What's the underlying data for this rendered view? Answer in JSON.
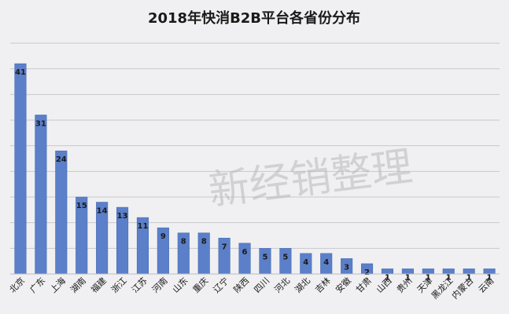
{
  "chart_data": {
    "type": "bar",
    "title": "2018年快消B2B平台各省份分布",
    "watermark": "新经销整理",
    "categories": [
      "北京",
      "广东",
      "上海",
      "湖南",
      "福建",
      "浙江",
      "江苏",
      "河南",
      "山东",
      "重庆",
      "辽宁",
      "陕西",
      "四川",
      "河北",
      "湖北",
      "吉林",
      "安徽",
      "甘肃",
      "山西",
      "贵州",
      "天津",
      "黑龙江",
      "内蒙古",
      "云南"
    ],
    "values": [
      41,
      31,
      24,
      15,
      14,
      13,
      11,
      9,
      8,
      8,
      7,
      6,
      5,
      5,
      4,
      4,
      3,
      2,
      1,
      1,
      1,
      1,
      1,
      1
    ],
    "ylim": [
      0,
      45
    ],
    "grid": true,
    "legend": "none",
    "xlabel": "",
    "ylabel": "",
    "colors": {
      "bar": "#5b7fc9",
      "bar_edge": "#4a6db5",
      "grid": "#c8c8cc",
      "background": "#f0f0f2",
      "text": "#1a1a1a",
      "watermark": "#b8b8bc"
    }
  }
}
